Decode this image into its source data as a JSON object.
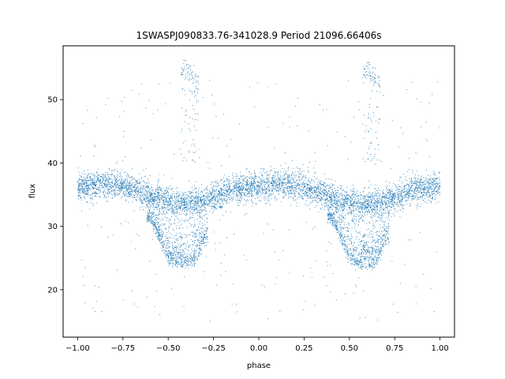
{
  "chart_data": {
    "type": "scatter",
    "title": "1SWASPJ090833.76-341028.9 Period 21096.66406s",
    "xlabel": "phase",
    "ylabel": "flux",
    "xlim": [
      -1.08,
      1.08
    ],
    "ylim": [
      12.5,
      58.5
    ],
    "xticks": [
      -1.0,
      -0.75,
      -0.5,
      -0.25,
      0.0,
      0.25,
      0.5,
      0.75,
      1.0
    ],
    "xtick_labels": [
      "−1.00",
      "−0.75",
      "−0.50",
      "−0.25",
      "0.00",
      "0.25",
      "0.50",
      "0.75",
      "1.00"
    ],
    "yticks": [
      20,
      30,
      40,
      50
    ],
    "ytick_labels": [
      "20",
      "30",
      "40",
      "50"
    ],
    "grid": false,
    "point_color": "#1f77b4",
    "series": [
      {
        "x": [
          -1.0,
          -0.95,
          -0.9,
          -0.85,
          -0.8,
          -0.75,
          -0.7,
          -0.65,
          -0.6,
          -0.55,
          -0.5,
          -0.45,
          -0.4,
          -0.35,
          -0.3,
          -0.25,
          -0.2,
          -0.15,
          -0.1,
          -0.05,
          0.0,
          0.05,
          0.1,
          0.15,
          0.2,
          0.25,
          0.3,
          0.35,
          0.4,
          0.45,
          0.5,
          0.55,
          0.6,
          0.65,
          0.7,
          0.75,
          0.8,
          0.85,
          0.9,
          0.95,
          1.0
        ],
        "y": [
          36.2,
          36.3,
          36.5,
          36.6,
          36.6,
          36.4,
          36.0,
          35.5,
          35.0,
          34.3,
          33.8,
          33.5,
          33.5,
          33.6,
          33.9,
          34.5,
          35.1,
          35.6,
          36.0,
          36.2,
          36.3,
          36.4,
          36.5,
          36.5,
          36.4,
          36.2,
          35.8,
          35.3,
          34.6,
          34.0,
          33.7,
          33.5,
          33.5,
          33.6,
          34.0,
          34.6,
          35.2,
          35.7,
          36.0,
          36.2,
          36.2
        ]
      },
      {
        "x": [
          -0.6,
          -0.55,
          -0.5,
          -0.45,
          -0.4,
          -0.35,
          -0.3,
          0.4,
          0.45,
          0.5,
          0.55,
          0.6,
          0.65,
          0.7
        ],
        "y": [
          31.0,
          28.0,
          24.5,
          23.8,
          23.6,
          24.0,
          27.5,
          31.0,
          28.0,
          24.5,
          23.8,
          23.6,
          24.0,
          27.5
        ]
      },
      {
        "x": [
          -0.42,
          -0.4,
          -0.38,
          -0.36,
          -0.34,
          0.58,
          0.6,
          0.62,
          0.64,
          0.66
        ],
        "y": [
          54.5,
          55.0,
          54.0,
          53.5,
          52.5,
          54.5,
          55.0,
          54.0,
          53.5,
          52.5
        ]
      }
    ]
  }
}
